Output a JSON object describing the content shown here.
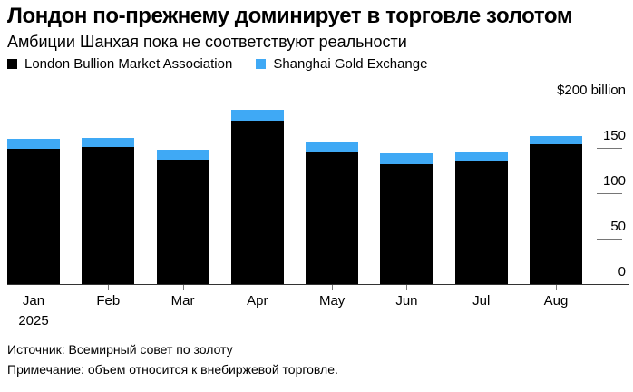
{
  "title": "Лондон по-прежнему доминирует в торговле золотом",
  "subtitle": "Амбиции Шанхая пока не соответствуют реальности",
  "legend": [
    {
      "label": "London Bullion Market Association",
      "color": "#000000"
    },
    {
      "label": "Shanghai Gold Exchange",
      "color": "#3fa9f5"
    }
  ],
  "chart_data": {
    "type": "bar",
    "stacked": true,
    "title": "Лондон по-прежнему доминирует в торговле золотом",
    "subtitle": "Амбиции Шанхая пока не соответствуют реальности",
    "categories": [
      "Jan",
      "Feb",
      "Mar",
      "Apr",
      "May",
      "Jun",
      "Jul",
      "Aug"
    ],
    "x_sub_label": {
      "index": 0,
      "text": "2025"
    },
    "series": [
      {
        "name": "London Bullion Market Association",
        "color": "#000000",
        "values": [
          149,
          151,
          137,
          180,
          145,
          132,
          136,
          154
        ]
      },
      {
        "name": "Shanghai Gold Exchange",
        "color": "#3fa9f5",
        "values": [
          11,
          10,
          11,
          12,
          11,
          12,
          10,
          9
        ]
      }
    ],
    "unit": "$ billion",
    "ylim": [
      0,
      200
    ],
    "grid": false,
    "legend_position": "top",
    "y_axis": {
      "side": "right",
      "ticks": [
        {
          "value": 200,
          "label": "$200 billion"
        },
        {
          "value": 150,
          "label": "150"
        },
        {
          "value": 100,
          "label": "100"
        },
        {
          "value": 50,
          "label": "50"
        },
        {
          "value": 0,
          "label": "0"
        }
      ]
    }
  },
  "footer": {
    "source": "Источник: Всемирный совет по золоту",
    "note": "Примечание: объем относится к внебиржевой торговле."
  }
}
